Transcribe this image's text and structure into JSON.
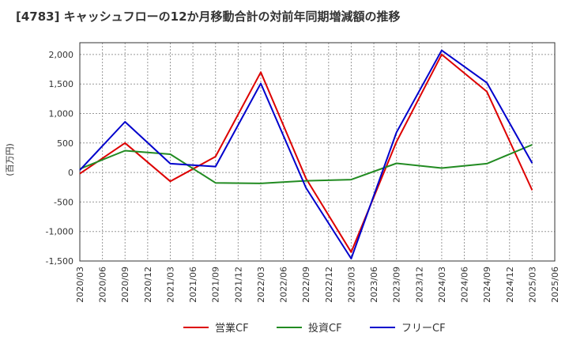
{
  "chart_data": {
    "type": "line",
    "title": "[4783]  キャッシュフローの12か月移動合計の対前年同期増減額の推移",
    "ylabel": "(百万円)",
    "xlabel": "",
    "ylim": [
      -1500,
      2200
    ],
    "yticks": [
      2000,
      1500,
      1000,
      500,
      0,
      -500,
      -1000,
      -1500
    ],
    "ytick_labels": [
      "2,000",
      "1,500",
      "1,000",
      "500",
      "0",
      "-500",
      "-1,000",
      "-1,500"
    ],
    "categories": [
      "2020/03",
      "2020/06",
      "2020/09",
      "2020/12",
      "2021/03",
      "2021/06",
      "2021/09",
      "2021/12",
      "2022/03",
      "2022/06",
      "2022/09",
      "2022/12",
      "2023/03",
      "2023/06",
      "2023/09",
      "2023/12",
      "2024/03",
      "2024/06",
      "2024/09",
      "2024/12",
      "2025/03",
      "2025/06"
    ],
    "grid": true,
    "legend_position": "bottom",
    "series": [
      {
        "name": "営業CF",
        "color": "#dd0000",
        "points": [
          [
            "2020/03",
            -20
          ],
          [
            "2020/09",
            500
          ],
          [
            "2021/03",
            -150
          ],
          [
            "2021/09",
            270
          ],
          [
            "2022/03",
            1700
          ],
          [
            "2022/09",
            -100
          ],
          [
            "2023/03",
            -1350
          ],
          [
            "2023/09",
            520
          ],
          [
            "2024/03",
            2000
          ],
          [
            "2024/09",
            1370
          ],
          [
            "2025/03",
            -300
          ]
        ]
      },
      {
        "name": "投資CF",
        "color": "#228b22",
        "points": [
          [
            "2020/03",
            60
          ],
          [
            "2020/09",
            370
          ],
          [
            "2021/03",
            310
          ],
          [
            "2021/09",
            -175
          ],
          [
            "2022/03",
            -185
          ],
          [
            "2022/09",
            -140
          ],
          [
            "2023/03",
            -120
          ],
          [
            "2023/09",
            155
          ],
          [
            "2024/03",
            75
          ],
          [
            "2024/09",
            150
          ],
          [
            "2025/03",
            470
          ]
        ]
      },
      {
        "name": "フリーCF",
        "color": "#0000cc",
        "points": [
          [
            "2020/03",
            40
          ],
          [
            "2020/09",
            860
          ],
          [
            "2021/03",
            150
          ],
          [
            "2021/09",
            100
          ],
          [
            "2022/03",
            1510
          ],
          [
            "2022/09",
            -260
          ],
          [
            "2023/03",
            -1460
          ],
          [
            "2023/09",
            680
          ],
          [
            "2024/03",
            2070
          ],
          [
            "2024/09",
            1520
          ],
          [
            "2025/03",
            160
          ]
        ]
      }
    ]
  }
}
